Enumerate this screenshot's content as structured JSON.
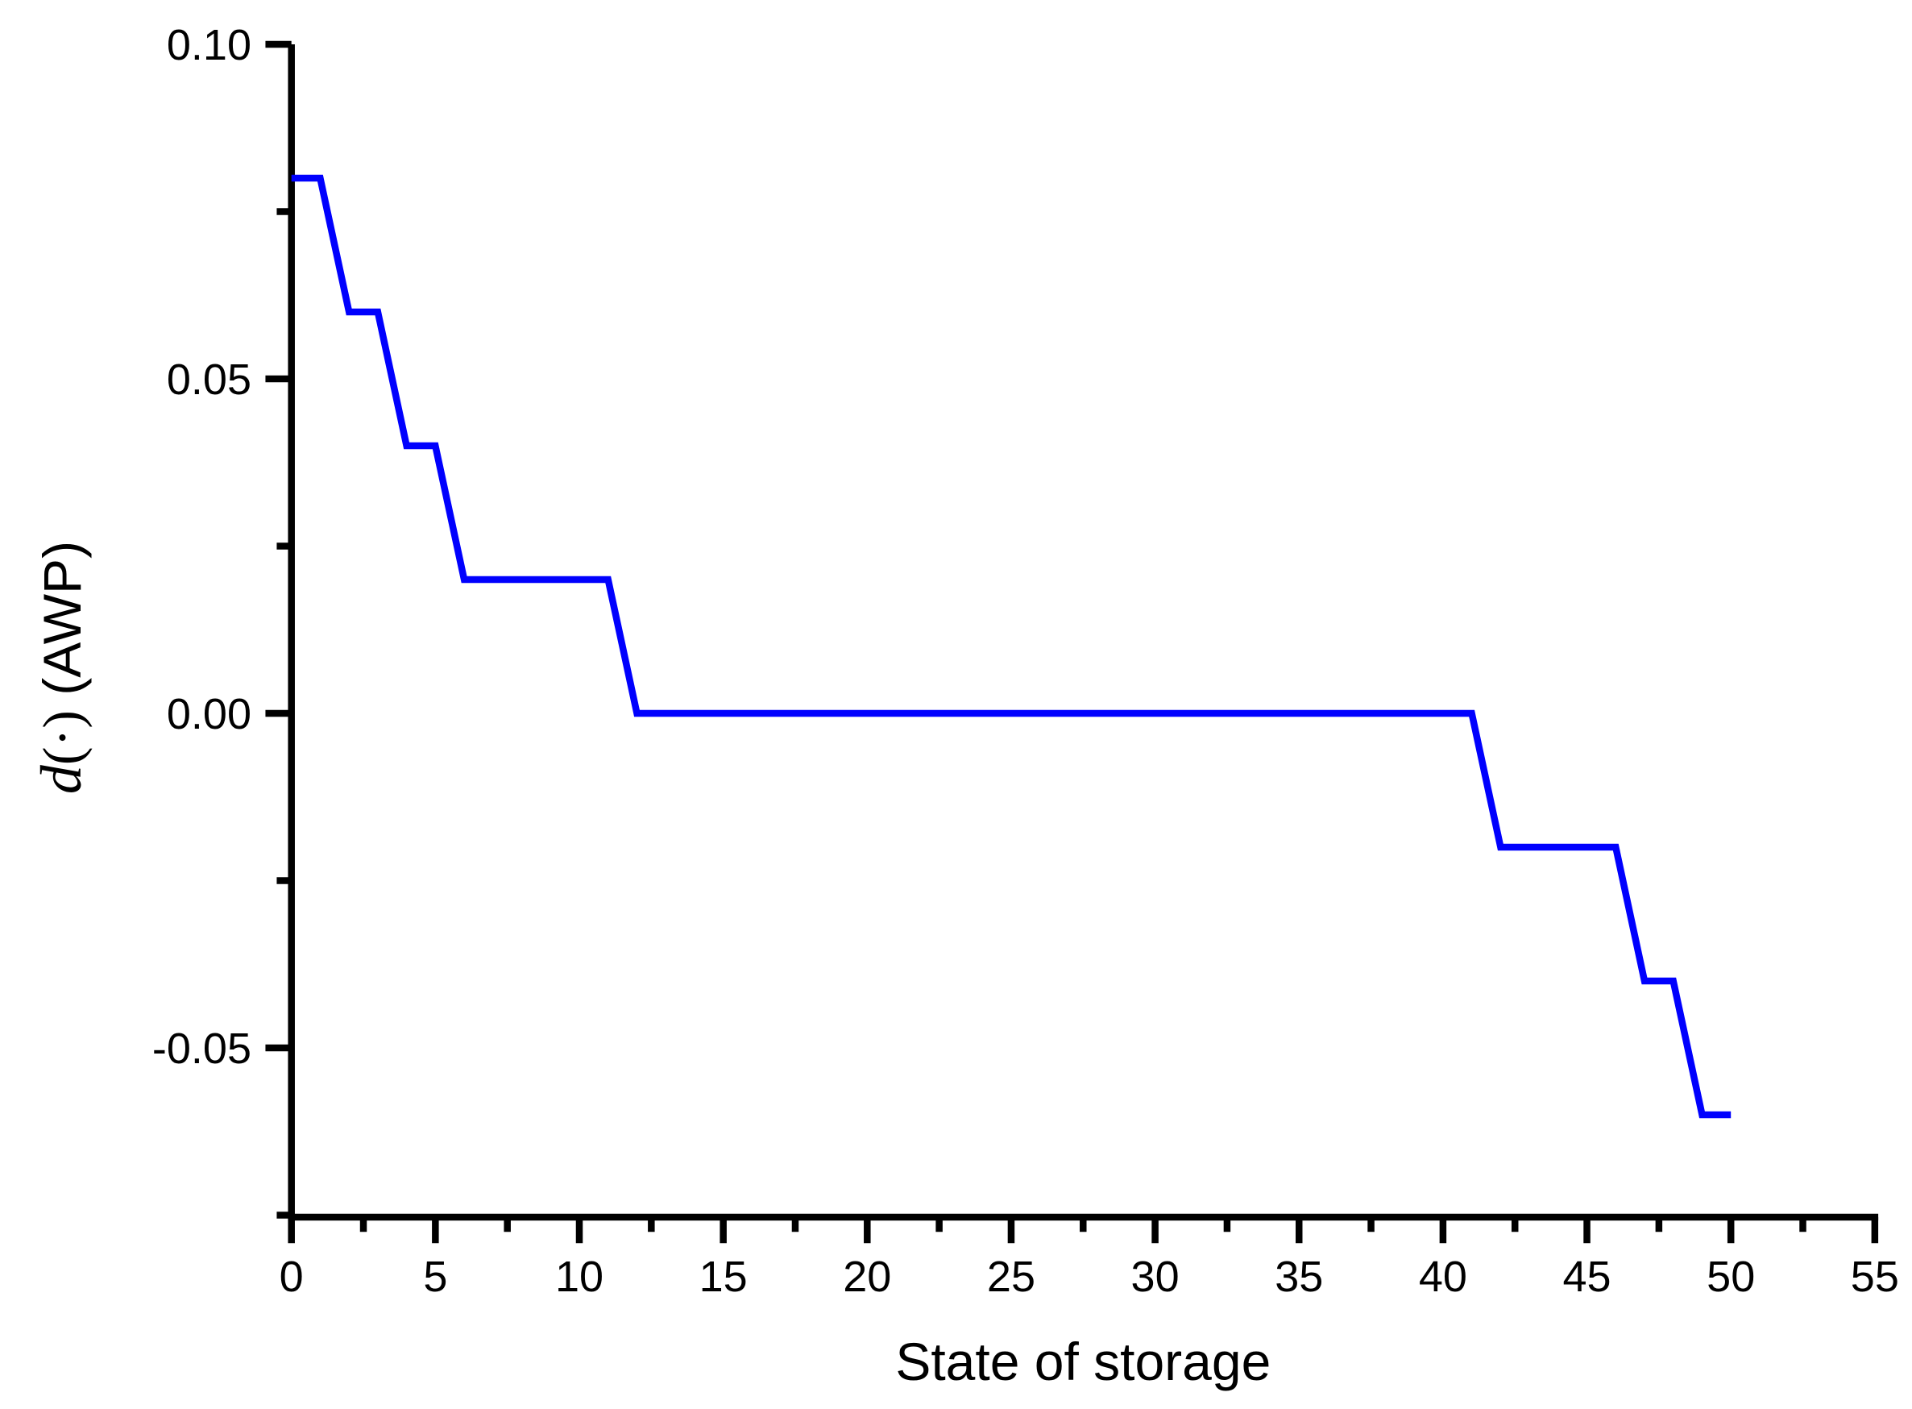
{
  "figure": {
    "background": "#FFFFFF"
  },
  "chart_data": {
    "type": "line",
    "title": "",
    "xlabel": "State of storage",
    "ylabel": "d(·) (AWP)",
    "ylabel_parts": {
      "d_italic": "d",
      "func_parens": "(·)",
      "unit": " (AWP)"
    },
    "axis_color": "#000000",
    "grid": false,
    "legend": false,
    "x_axis": {
      "min": 0,
      "max": 55,
      "major_ticks": [
        0,
        5,
        10,
        15,
        20,
        25,
        30,
        35,
        40,
        45,
        50,
        55
      ],
      "tick_labels": [
        "0",
        "5",
        "10",
        "15",
        "20",
        "25",
        "30",
        "35",
        "40",
        "45",
        "50",
        "55"
      ],
      "minor_ticks": [
        2.5,
        7.5,
        12.5,
        17.5,
        22.5,
        27.5,
        32.5,
        37.5,
        42.5,
        47.5,
        52.5
      ]
    },
    "y_axis": {
      "min": -0.076,
      "max": 0.1,
      "major_ticks": [
        0.1,
        0.05,
        0.0,
        -0.05
      ],
      "tick_labels": [
        "0.10",
        "0.05",
        "0.00",
        "-0.05"
      ],
      "minor_ticks": [
        0.075,
        0.025,
        -0.025,
        -0.075
      ]
    },
    "series": [
      {
        "color": "#0000FE",
        "points": [
          [
            0,
            0.08
          ],
          [
            1,
            0.08
          ],
          [
            2,
            0.06
          ],
          [
            3,
            0.06
          ],
          [
            4,
            0.04
          ],
          [
            5,
            0.04
          ],
          [
            6,
            0.02
          ],
          [
            11,
            0.02
          ],
          [
            12,
            0.0
          ],
          [
            41,
            0.0
          ],
          [
            42,
            -0.02
          ],
          [
            46,
            -0.02
          ],
          [
            47,
            -0.04
          ],
          [
            48,
            -0.04
          ],
          [
            49,
            -0.06
          ],
          [
            50,
            -0.06
          ]
        ]
      }
    ]
  }
}
